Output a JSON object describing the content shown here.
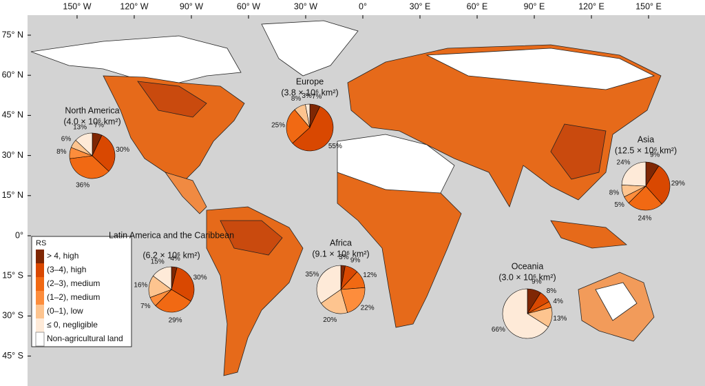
{
  "map": {
    "lon_ticks": [
      {
        "value": -150,
        "label": "150° W"
      },
      {
        "value": -120,
        "label": "120° W"
      },
      {
        "value": -90,
        "label": "90° W"
      },
      {
        "value": -60,
        "label": "60° W"
      },
      {
        "value": -30,
        "label": "30° W"
      },
      {
        "value": 0,
        "label": "0°"
      },
      {
        "value": 30,
        "label": "30° E"
      },
      {
        "value": 60,
        "label": "60° E"
      },
      {
        "value": 90,
        "label": "90° E"
      },
      {
        "value": 120,
        "label": "120° E"
      },
      {
        "value": 150,
        "label": "150° E"
      }
    ],
    "lat_ticks": [
      {
        "value": 75,
        "label": "75° N"
      },
      {
        "value": 60,
        "label": "60° N"
      },
      {
        "value": 45,
        "label": "45° N"
      },
      {
        "value": 30,
        "label": "30° N"
      },
      {
        "value": 15,
        "label": "15° N"
      },
      {
        "value": 0,
        "label": "0°"
      },
      {
        "value": -15,
        "label": "15° S"
      },
      {
        "value": -30,
        "label": "30° S"
      },
      {
        "value": -45,
        "label": "45° S"
      }
    ],
    "legend": {
      "title": "RS",
      "entries": [
        {
          "label": "> 4, high",
          "color": "#7f2704"
        },
        {
          "label": "(3–4), high",
          "color": "#d94801"
        },
        {
          "label": "(2–3), medium",
          "color": "#f16913"
        },
        {
          "label": "(1–2), medium",
          "color": "#fd8d3c"
        },
        {
          "label": "(0–1), low",
          "color": "#fdc48f"
        },
        {
          "label": "≤ 0, negligible",
          "color": "#feead8"
        },
        {
          "label": "Non-agricultural land",
          "color": "#ffffff"
        }
      ]
    },
    "regions": [
      {
        "name": "North America",
        "area": "(4.0 × 10⁶ km²)",
        "values": [
          7,
          30,
          36,
          8,
          6,
          13
        ],
        "value_labels": [
          "7%",
          "30%",
          "36%",
          "8%",
          "6%",
          "13%"
        ],
        "colors": [
          "#7f2704",
          "#d94801",
          "#f16913",
          "#fd8d3c",
          "#fdc48f",
          "#feead8"
        ]
      },
      {
        "name": "Europe",
        "area": "(3.8 × 10⁶ km²)",
        "values": [
          7,
          55,
          25,
          8,
          3
        ],
        "value_labels": [
          "7%",
          "55%",
          "25%",
          "8%",
          "3%"
        ],
        "colors": [
          "#7f2704",
          "#d94801",
          "#f16913",
          "#fdc48f",
          "#feead8"
        ]
      },
      {
        "name": "Asia",
        "area": "(12.5 × 10⁶ km²)",
        "values": [
          9,
          29,
          24,
          5,
          8,
          24
        ],
        "value_labels": [
          "9%",
          "29%",
          "24%",
          "5%",
          "8%",
          "24%"
        ],
        "colors": [
          "#7f2704",
          "#d94801",
          "#f16913",
          "#fd8d3c",
          "#fdc48f",
          "#feead8"
        ]
      },
      {
        "name": "Latin America and the Caribbean",
        "area": "(6.2 × 10⁶ km²)",
        "values": [
          4,
          30,
          29,
          7,
          16,
          15
        ],
        "value_labels": [
          "4%",
          "30%",
          "29%",
          "7%",
          "16%",
          "15%"
        ],
        "colors": [
          "#7f2704",
          "#d94801",
          "#f16913",
          "#fd8d3c",
          "#fdc48f",
          "#feead8"
        ]
      },
      {
        "name": "Africa",
        "area": "(9.1 × 10⁶ km²)",
        "values": [
          3,
          9,
          12,
          22,
          20,
          35
        ],
        "value_labels": [
          "3%",
          "9%",
          "12%",
          "22%",
          "20%",
          "35%"
        ],
        "colors": [
          "#7f2704",
          "#d94801",
          "#f16913",
          "#fd8d3c",
          "#fdc48f",
          "#feead8"
        ]
      },
      {
        "name": "Oceania",
        "area": "(3.0 × 10⁶ km²)",
        "values": [
          9,
          8,
          4,
          13,
          66
        ],
        "value_labels": [
          "9%",
          "8%",
          "4%",
          "13%",
          "66%"
        ],
        "colors": [
          "#7f2704",
          "#d94801",
          "#f16913",
          "#fdc48f",
          "#feead8"
        ]
      }
    ]
  }
}
